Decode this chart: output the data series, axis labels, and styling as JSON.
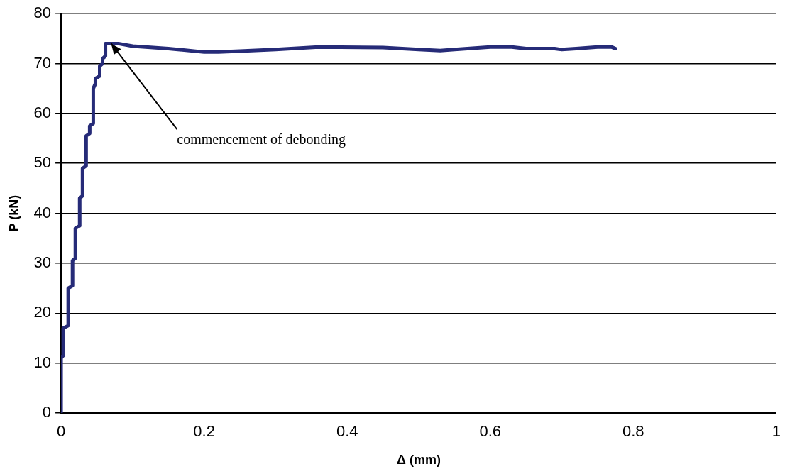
{
  "chart_data": {
    "type": "step",
    "xlabel": "Δ (mm)",
    "ylabel": "P (kN)",
    "x": [
      0,
      0,
      0.003,
      0.003,
      0.01,
      0.01,
      0.016,
      0.016,
      0.02,
      0.02,
      0.026,
      0.026,
      0.03,
      0.03,
      0.035,
      0.035,
      0.04,
      0.04,
      0.045,
      0.045,
      0.048,
      0.048,
      0.054,
      0.054,
      0.058,
      0.058,
      0.062,
      0.062,
      0.08,
      0.1,
      0.15,
      0.2,
      0.22,
      0.25,
      0.3,
      0.36,
      0.45,
      0.5,
      0.53,
      0.55,
      0.6,
      0.63,
      0.65,
      0.69,
      0.7,
      0.72,
      0.75,
      0.77,
      0.775
    ],
    "series": [
      {
        "color": "#262b78",
        "values": [
          0,
          11,
          11.5,
          17,
          17.5,
          25,
          25.5,
          30.5,
          31,
          37,
          37.5,
          43,
          43.5,
          49,
          49.5,
          55.5,
          56,
          57.5,
          58,
          65,
          66,
          67,
          67.5,
          69.5,
          70,
          71,
          71.5,
          74,
          74,
          73.5,
          73,
          72.3,
          72.3,
          72.5,
          72.8,
          73.3,
          73.2,
          72.8,
          72.6,
          72.8,
          73.3,
          73.3,
          73,
          73,
          72.8,
          73,
          73.3,
          73.3,
          73
        ]
      }
    ],
    "xlim": [
      0,
      1
    ],
    "xticks": [
      0,
      0.2,
      0.4,
      0.6,
      0.8,
      1
    ],
    "ylim": [
      0,
      80
    ],
    "yticks": [
      0,
      10,
      20,
      30,
      40,
      50,
      60,
      70,
      80
    ],
    "grid": "y",
    "legend": false,
    "marker": "none",
    "line_style": "solid",
    "annotations": [
      {
        "text": "commencement of debonding",
        "x": 0.07,
        "y": 74
      }
    ]
  }
}
